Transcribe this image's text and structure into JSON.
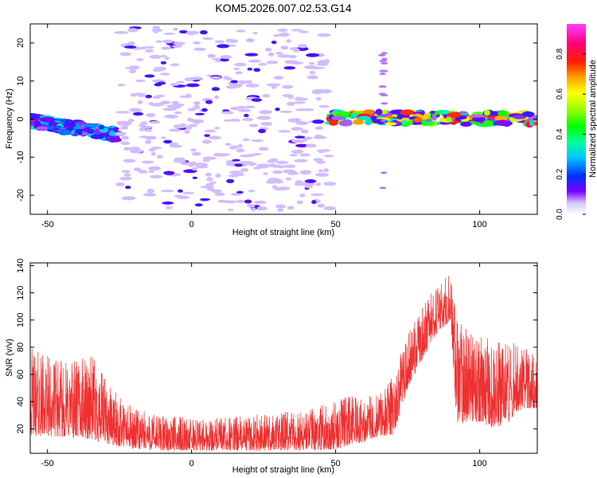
{
  "figure": {
    "title": "KOM5.2026.007.02.53.G14"
  },
  "colors": {
    "snr_line": "#ef3030",
    "axis": "#000000",
    "background": "#ffffff"
  },
  "chart_data": [
    {
      "type": "heatmap",
      "xlabel": "Height of straight line (km)",
      "ylabel": "Frequency (Hz)",
      "xlim": [
        -56,
        120
      ],
      "ylim": [
        -25,
        25
      ],
      "x_ticks": [
        -50,
        0,
        50,
        100
      ],
      "y_ticks": [
        -20,
        -10,
        0,
        10,
        20
      ],
      "colorbar": {
        "label": "Normalized spectral amplitude",
        "range": [
          0,
          0.95
        ],
        "ticks": [
          0,
          0.2,
          0.4,
          0.6,
          0.8
        ]
      },
      "features": [
        {
          "x_range": [
            -56,
            -26
          ],
          "freq_start": -0.5,
          "freq_end": -4,
          "amplitude": 0.3
        },
        {
          "x_range": [
            -25,
            48
          ],
          "freq": "scattered",
          "amplitude": 0.05
        },
        {
          "x_range": [
            47,
            120
          ],
          "freq_start": 0.5,
          "freq_end": 0,
          "amplitude": 0.75
        },
        {
          "x_range": [
            66,
            67
          ],
          "freq_start": 18,
          "freq_end": -21,
          "amplitude": 0.08
        }
      ]
    },
    {
      "type": "line",
      "xlabel": "Height of straight line (km)",
      "ylabel": "SNR (v/v)",
      "xlim": [
        -56,
        120
      ],
      "ylim": [
        2,
        142
      ],
      "x_ticks": [
        -50,
        0,
        50,
        100
      ],
      "y_ticks": [
        20,
        40,
        60,
        80,
        100,
        120,
        140
      ],
      "envelope": {
        "x": [
          -56,
          -45,
          -35,
          -28,
          -20,
          -10,
          0,
          10,
          20,
          30,
          40,
          50,
          55,
          60,
          65,
          70,
          75,
          80,
          85,
          90,
          92,
          95,
          100,
          105,
          110,
          115,
          120
        ],
        "lower": [
          15,
          14,
          12,
          8,
          5,
          4,
          4,
          4,
          4,
          4,
          4,
          5,
          8,
          10,
          15,
          15,
          50,
          70,
          90,
          100,
          20,
          25,
          25,
          20,
          25,
          35,
          35
        ],
        "upper": [
          80,
          70,
          75,
          50,
          35,
          30,
          28,
          28,
          30,
          32,
          35,
          40,
          45,
          45,
          45,
          60,
          90,
          110,
          125,
          135,
          100,
          95,
          90,
          85,
          85,
          80,
          75
        ]
      }
    }
  ]
}
